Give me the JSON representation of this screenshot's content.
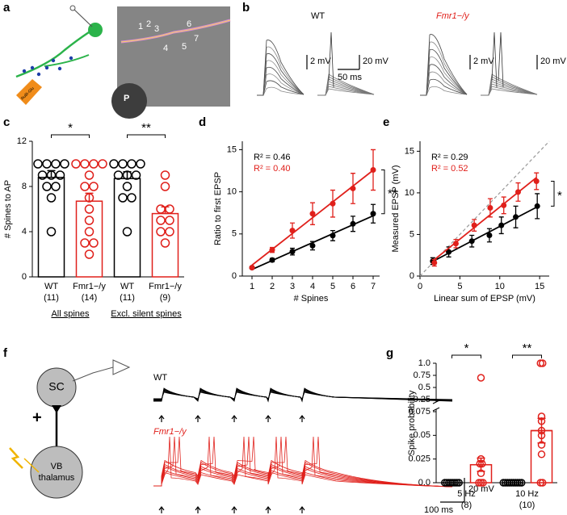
{
  "figure": {
    "panel_labels": [
      "a",
      "b",
      "c",
      "d",
      "e",
      "f",
      "g"
    ],
    "panel_a": {
      "spine_numbers": [
        "1",
        "2",
        "3",
        "4",
        "5",
        "6",
        "7"
      ],
      "region": "P",
      "pipette": "RuBi-Glu"
    },
    "panel_b": {
      "genotypes": [
        "WT",
        "Fmr1−/y"
      ],
      "scale_bars": [
        "2 mV",
        "20 mV",
        "50 ms",
        "2 mV",
        "20 mV"
      ]
    },
    "panel_f": {
      "cell_top": "SC",
      "cell_bottom_lines": [
        "VB",
        "thalamus"
      ],
      "sign": "+",
      "genotypes": [
        "WT",
        "Fmr1−/y"
      ],
      "scale_bars": [
        "20 mV",
        "100 ms"
      ]
    }
  },
  "chart_data": [
    {
      "type": "bar",
      "ylabel": "# Spines to AP",
      "categories": [
        "WT",
        "Fmr1−/y",
        "WT",
        "Fmr1−/y"
      ],
      "counts": [
        "(11)",
        "(14)",
        "(11)",
        "(9)"
      ],
      "groups": [
        "All spines",
        "Excl. silent spines"
      ],
      "significance": [
        "*",
        "**"
      ],
      "colors": [
        "#000000",
        "#e0201b",
        "#000000",
        "#e0201b"
      ],
      "values": [
        8.8,
        6.7,
        8.7,
        5.6
      ],
      "errors": [
        0.6,
        0.7,
        0.6,
        0.6
      ],
      "points": [
        [
          10,
          10,
          10,
          10,
          9,
          9,
          9,
          8,
          8,
          7,
          4
        ],
        [
          10,
          10,
          10,
          10,
          9,
          8,
          8,
          7,
          6,
          5,
          4,
          3,
          3,
          2
        ],
        [
          10,
          10,
          10,
          10,
          9,
          9,
          9,
          8,
          7,
          7,
          4
        ],
        [
          9,
          8,
          6,
          6,
          5,
          5,
          4,
          4,
          3
        ]
      ],
      "ylim": [
        0,
        12
      ],
      "yticks": [
        0,
        4,
        8,
        12
      ]
    },
    {
      "type": "line",
      "xlabel": "# Spines",
      "ylabel": "Ratio to first EPSP",
      "x": [
        1,
        2,
        3,
        4,
        5,
        6,
        7
      ],
      "xlim": [
        0.52,
        7.32
      ],
      "xticks": [
        1,
        2,
        3,
        4,
        5,
        6,
        7
      ],
      "ylim": [
        0,
        16
      ],
      "yticks": [
        0,
        5,
        10,
        15
      ],
      "series": [
        {
          "color": "#000000",
          "values": [
            1,
            1.9,
            2.9,
            3.6,
            4.8,
            6.2,
            7.4
          ],
          "errors": [
            0.1,
            0.2,
            0.4,
            0.5,
            0.6,
            0.9,
            1.1
          ]
        },
        {
          "color": "#e0201b",
          "values": [
            1,
            3.1,
            5.4,
            7.4,
            8.6,
            10.4,
            12.6
          ],
          "errors": [
            0.1,
            0.3,
            0.9,
            1.3,
            1.6,
            1.8,
            2.4
          ]
        }
      ],
      "annotations": [
        "R² = 0.46",
        "R² = 0.40"
      ],
      "significance": "**"
    },
    {
      "type": "scatter",
      "xlabel": "Linear sum of EPSP (mV)",
      "ylabel": "Measured EPSP (mV)",
      "xlim": [
        0,
        16.2
      ],
      "xticks": [
        0,
        5,
        10,
        15
      ],
      "ylim": [
        0,
        16.2
      ],
      "yticks": [
        0,
        5,
        10,
        15
      ],
      "identity_line": true,
      "series": [
        {
          "color": "#000000",
          "x": [
            1.6,
            3.6,
            6.5,
            8.7,
            10.2,
            12,
            14.7
          ],
          "values": [
            1.8,
            2.9,
            4.2,
            4.9,
            6.1,
            7.1,
            8.4
          ],
          "errors": [
            0.4,
            0.6,
            0.7,
            0.8,
            1.0,
            1.3,
            1.5
          ]
        },
        {
          "color": "#e0201b",
          "x": [
            1.8,
            4.5,
            6.8,
            8.8,
            10.5,
            12.3,
            14.6
          ],
          "values": [
            1.6,
            3.9,
            6.1,
            8.2,
            8.5,
            10.1,
            11.4
          ],
          "errors": [
            0.4,
            0.5,
            0.7,
            1.1,
            1.0,
            1.1,
            1.0
          ]
        }
      ],
      "annotations": [
        "R² = 0.29",
        "R² = 0.52"
      ],
      "significance": "*"
    },
    {
      "type": "bar",
      "ylabel": "Spike probability",
      "categories": [
        "5 Hz",
        "10 Hz"
      ],
      "counts": [
        "(8)",
        "(10)"
      ],
      "significance": [
        "*",
        "**"
      ],
      "ylim": [
        0,
        1
      ],
      "axis_break": [
        0.075,
        0.25
      ],
      "yticks": [
        {
          "value": 0,
          "label": "0.0"
        },
        0.025,
        0.05,
        0.075,
        0.25,
        0.5,
        0.75,
        {
          "value": 1,
          "label": "1.0"
        }
      ],
      "series": [
        {
          "color": "#000000",
          "values": [
            0,
            0
          ],
          "points": [
            [
              0,
              0,
              0,
              0,
              0,
              0,
              0,
              0
            ],
            [
              0,
              0,
              0,
              0,
              0,
              0,
              0,
              0,
              0,
              0
            ]
          ]
        },
        {
          "color": "#e0201b",
          "values": [
            0.019,
            0.055
          ],
          "errors": [
            0.007,
            0.013
          ],
          "points": [
            [
              0.7,
              0.025,
              0.02,
              0.02,
              0.01,
              0,
              0,
              0
            ],
            [
              1,
              1,
              0.07,
              0.065,
              0.055,
              0.05,
              0.04,
              0.03,
              0,
              0
            ]
          ]
        }
      ]
    }
  ]
}
